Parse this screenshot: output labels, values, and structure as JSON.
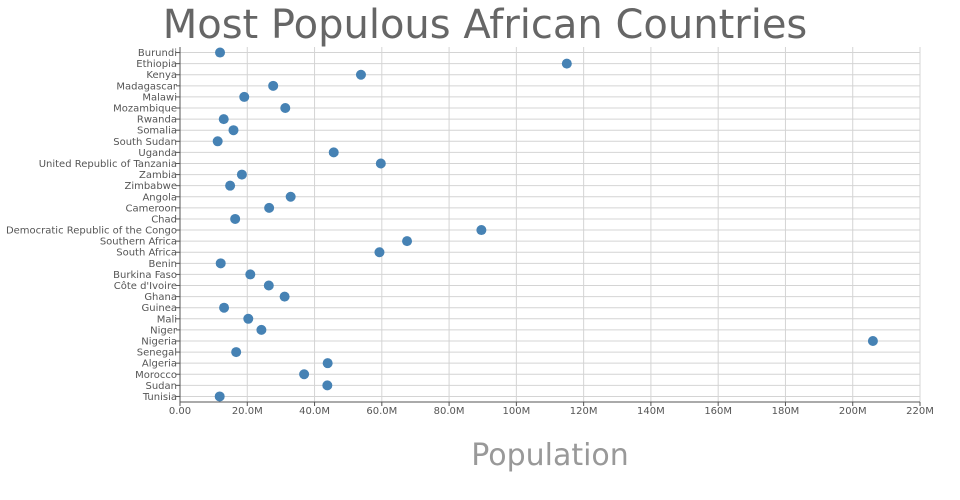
{
  "chart_data": {
    "type": "scatter",
    "title": "Most Populous African Countries",
    "xlabel": "Population",
    "ylabel": "",
    "xlim": [
      0,
      220000000
    ],
    "x_ticks": [
      0,
      20000000,
      40000000,
      60000000,
      80000000,
      100000000,
      120000000,
      140000000,
      160000000,
      180000000,
      200000000,
      220000000
    ],
    "x_tick_labels": [
      "0.00",
      "20.0M",
      "40.0M",
      "60.0M",
      "80.0M",
      "100M",
      "120M",
      "140M",
      "160M",
      "180M",
      "200M",
      "220M"
    ],
    "grid": true,
    "categories": [
      "Burundi",
      "Ethiopia",
      "Kenya",
      "Madagascar",
      "Malawi",
      "Mozambique",
      "Rwanda",
      "Somalia",
      "South Sudan",
      "Uganda",
      "United Republic of Tanzania",
      "Zambia",
      "Zimbabwe",
      "Angola",
      "Cameroon",
      "Chad",
      "Democratic Republic of the Congo",
      "Southern Africa",
      "South Africa",
      "Benin",
      "Burkina Faso",
      "Côte d'Ivoire",
      "Ghana",
      "Guinea",
      "Mali",
      "Niger",
      "Nigeria",
      "Senegal",
      "Algeria",
      "Morocco",
      "Sudan",
      "Tunisia"
    ],
    "values": [
      11900000,
      115000000,
      53800000,
      27700000,
      19100000,
      31300000,
      13000000,
      15900000,
      11200000,
      45700000,
      59700000,
      18400000,
      14900000,
      32900000,
      26500000,
      16400000,
      89600000,
      67500000,
      59300000,
      12100000,
      20900000,
      26400000,
      31100000,
      13100000,
      20300000,
      24200000,
      206000000,
      16700000,
      43900000,
      36900000,
      43800000,
      11800000
    ],
    "marker_color": "#4682b4"
  }
}
